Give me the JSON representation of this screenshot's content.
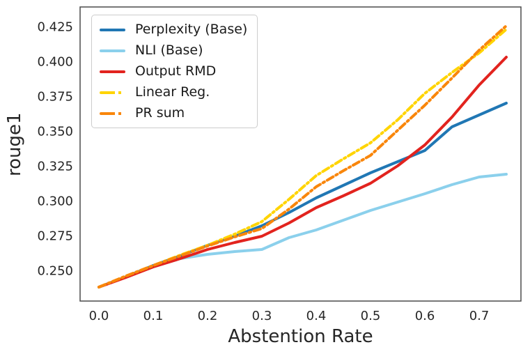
{
  "chart_data": {
    "type": "line",
    "title": "",
    "xlabel": "Abstention Rate",
    "ylabel": "rouge1",
    "grid": false,
    "legend_position": "upper left",
    "xlim": [
      -0.0346,
      0.7769
    ],
    "ylim": [
      0.228,
      0.439
    ],
    "x_ticks": [
      {
        "label": "0.0",
        "value": 0.0
      },
      {
        "label": "0.1",
        "value": 0.1
      },
      {
        "label": "0.2",
        "value": 0.2
      },
      {
        "label": "0.3",
        "value": 0.3
      },
      {
        "label": "0.4",
        "value": 0.4
      },
      {
        "label": "0.5",
        "value": 0.5
      },
      {
        "label": "0.6",
        "value": 0.6
      },
      {
        "label": "0.7",
        "value": 0.7
      }
    ],
    "y_ticks": [
      {
        "label": "0.250",
        "value": 0.25
      },
      {
        "label": "0.275",
        "value": 0.275
      },
      {
        "label": "0.300",
        "value": 0.3
      },
      {
        "label": "0.325",
        "value": 0.325
      },
      {
        "label": "0.350",
        "value": 0.35
      },
      {
        "label": "0.375",
        "value": 0.375
      },
      {
        "label": "0.400",
        "value": 0.4
      },
      {
        "label": "0.425",
        "value": 0.425
      }
    ],
    "x": [
      0.0,
      0.05,
      0.1,
      0.15,
      0.2,
      0.25,
      0.3,
      0.35,
      0.4,
      0.45,
      0.5,
      0.55,
      0.6,
      0.65,
      0.7,
      0.75
    ],
    "series": [
      {
        "name": "Perplexity (Base)",
        "color": "#2077b4",
        "style": "solid",
        "values": [
          0.238,
          0.2455,
          0.2535,
          0.2605,
          0.268,
          0.2745,
          0.282,
          0.2915,
          0.302,
          0.311,
          0.32,
          0.328,
          0.336,
          0.353,
          0.3615,
          0.37
        ]
      },
      {
        "name": "NLI (Base)",
        "color": "#8bd0ec",
        "style": "solid",
        "values": [
          0.238,
          0.2455,
          0.2525,
          0.2585,
          0.2615,
          0.2635,
          0.265,
          0.2735,
          0.279,
          0.286,
          0.293,
          0.299,
          0.305,
          0.3115,
          0.317,
          0.319
        ]
      },
      {
        "name": "Output RMD",
        "color": "#e2231e",
        "style": "solid",
        "values": [
          0.238,
          0.245,
          0.2525,
          0.2585,
          0.265,
          0.27,
          0.2745,
          0.284,
          0.295,
          0.3035,
          0.3125,
          0.325,
          0.34,
          0.36,
          0.383,
          0.403
        ]
      },
      {
        "name": "Linear Reg.",
        "color": "#ffd400",
        "style": "dashdot",
        "values": [
          0.238,
          0.246,
          0.2535,
          0.261,
          0.268,
          0.276,
          0.285,
          0.301,
          0.318,
          0.33,
          0.3415,
          0.358,
          0.377,
          0.392,
          0.406,
          0.423
        ]
      },
      {
        "name": "PR sum",
        "color": "#f9860b",
        "style": "dashdot",
        "values": [
          0.238,
          0.246,
          0.2535,
          0.2605,
          0.2675,
          0.274,
          0.28,
          0.294,
          0.31,
          0.3215,
          0.3325,
          0.3505,
          0.3685,
          0.388,
          0.408,
          0.4255
        ]
      }
    ]
  }
}
